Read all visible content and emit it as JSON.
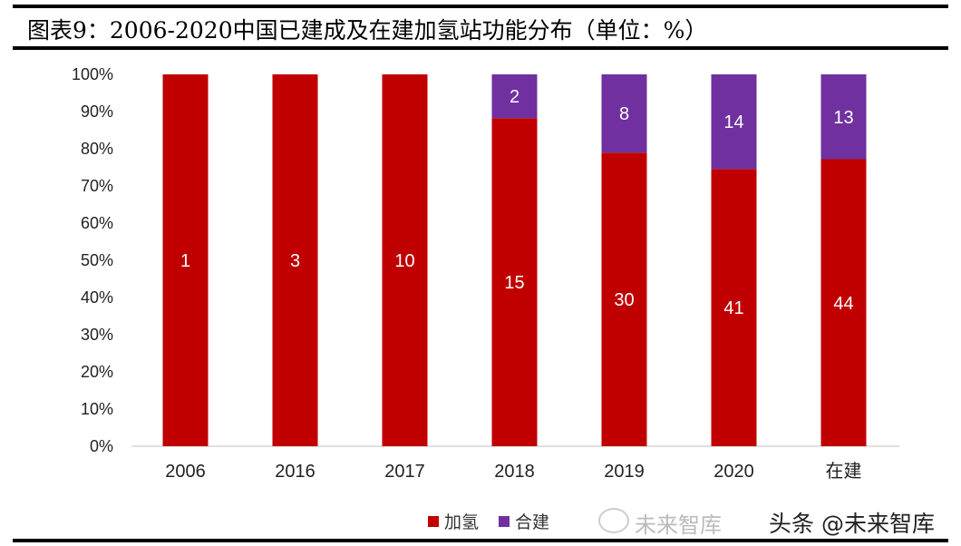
{
  "title": "图表9：2006-2020中国已建成及在建加氢站功能分布（单位：%）",
  "watermark": {
    "faded": "未来智库",
    "main": "头条 @未来智库"
  },
  "chart_data": {
    "type": "bar",
    "stacked": "percent",
    "title": "图表9：2006-2020中国已建成及在建加氢站功能分布（单位：%）",
    "categories": [
      "2006",
      "2016",
      "2017",
      "2018",
      "2019",
      "2020",
      "在建"
    ],
    "series": [
      {
        "name": "加氢",
        "color": "#c00000",
        "values": [
          1,
          3,
          10,
          15,
          30,
          41,
          44
        ]
      },
      {
        "name": "合建",
        "color": "#7030a0",
        "values": [
          0,
          0,
          0,
          2,
          8,
          14,
          13
        ]
      }
    ],
    "yticks": [
      "0%",
      "10%",
      "20%",
      "30%",
      "40%",
      "50%",
      "60%",
      "70%",
      "80%",
      "90%",
      "100%"
    ],
    "ylim": [
      0,
      100
    ],
    "xlabel": "",
    "ylabel": "",
    "grid": false,
    "legend_position": "bottom"
  }
}
